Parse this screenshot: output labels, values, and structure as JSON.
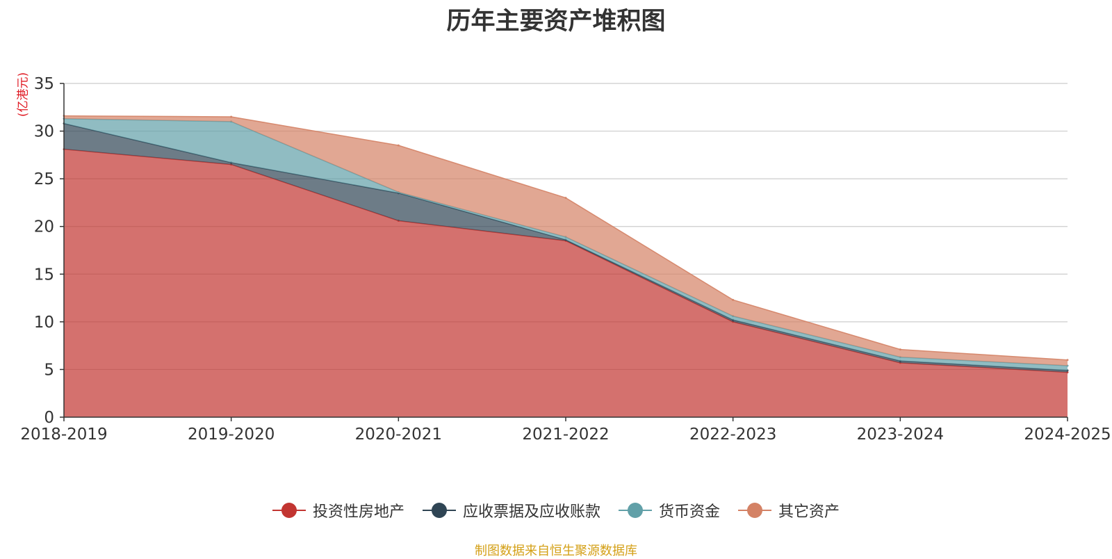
{
  "chart_data": {
    "type": "area",
    "stacked": true,
    "title": "历年主要资产堆积图",
    "ylabel": "(亿港元)",
    "ylim": [
      0,
      35
    ],
    "yticks": [
      0,
      5,
      10,
      15,
      20,
      25,
      30,
      35
    ],
    "grid": true,
    "legend_position": "bottom",
    "categories": [
      "2018-2019",
      "2019-2020",
      "2020-2021",
      "2021-2022",
      "2022-2023",
      "2023-2024",
      "2024-2025"
    ],
    "series": [
      {
        "name": "投资性房地产",
        "color": "#c23531",
        "values": [
          28.1,
          26.5,
          20.6,
          18.5,
          10.0,
          5.7,
          4.7
        ]
      },
      {
        "name": "应收票据及应收账款",
        "color": "#2f4554",
        "values": [
          2.7,
          0.2,
          2.9,
          0.1,
          0.2,
          0.2,
          0.2
        ]
      },
      {
        "name": "货币资金",
        "color": "#61a0a8",
        "values": [
          0.5,
          4.3,
          0.1,
          0.3,
          0.4,
          0.4,
          0.5
        ]
      },
      {
        "name": "其它资产",
        "color": "#d48265",
        "values": [
          0.3,
          0.5,
          4.9,
          4.1,
          1.7,
          0.8,
          0.6
        ]
      }
    ],
    "y_unit_color": "#e01b24"
  },
  "source": "制图数据来自恒生聚源数据库"
}
